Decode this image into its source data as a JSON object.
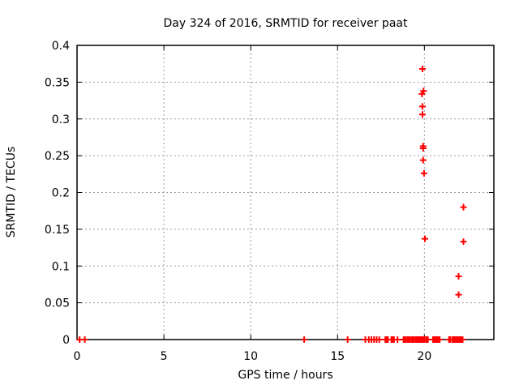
{
  "chart_data": {
    "type": "scatter",
    "title": "Day 324 of 2016, SRMTID for receiver paat",
    "xlabel": "GPS time / hours",
    "ylabel": "SRMTID / TECUs",
    "xlim": [
      0,
      24
    ],
    "ylim": [
      0,
      0.4
    ],
    "xticks": [
      "0",
      "5",
      "10",
      "15",
      "20"
    ],
    "yticks": [
      "0",
      "0.05",
      "0.1",
      "0.15",
      "0.2",
      "0.25",
      "0.3",
      "0.35",
      "0.4"
    ],
    "grid": true,
    "legend_position": "none",
    "marker": "plus",
    "colors": {
      "points": "#ff0000",
      "grid": "#9b9b9b",
      "border": "#000000",
      "background": "#ffffff",
      "text": "#000000"
    },
    "series": [
      {
        "name": "SRMTID",
        "points": [
          [
            19.89,
            0.368
          ],
          [
            19.95,
            0.338
          ],
          [
            19.86,
            0.334
          ],
          [
            19.89,
            0.317
          ],
          [
            19.89,
            0.306
          ],
          [
            19.93,
            0.263
          ],
          [
            19.93,
            0.26
          ],
          [
            19.93,
            0.244
          ],
          [
            19.98,
            0.226
          ],
          [
            20.03,
            0.137
          ],
          [
            22.25,
            0.18
          ],
          [
            22.25,
            0.133
          ],
          [
            21.97,
            0.086
          ],
          [
            21.97,
            0.061
          ],
          [
            0.15,
            0
          ],
          [
            0.45,
            0
          ],
          [
            13.08,
            0
          ],
          [
            15.58,
            0
          ],
          [
            16.6,
            0
          ],
          [
            16.8,
            0
          ],
          [
            16.95,
            0
          ],
          [
            17.1,
            0
          ],
          [
            17.25,
            0
          ],
          [
            17.4,
            0
          ],
          [
            17.75,
            0
          ],
          [
            17.8,
            0
          ],
          [
            17.85,
            0
          ],
          [
            17.9,
            0
          ],
          [
            18.1,
            0
          ],
          [
            18.15,
            0
          ],
          [
            18.2,
            0
          ],
          [
            18.25,
            0
          ],
          [
            18.45,
            0
          ],
          [
            18.8,
            0
          ],
          [
            18.85,
            0
          ],
          [
            18.9,
            0
          ],
          [
            18.95,
            0
          ],
          [
            19.05,
            0
          ],
          [
            19.1,
            0
          ],
          [
            19.15,
            0
          ],
          [
            19.25,
            0
          ],
          [
            19.3,
            0
          ],
          [
            19.35,
            0
          ],
          [
            19.4,
            0
          ],
          [
            19.5,
            0
          ],
          [
            19.55,
            0
          ],
          [
            19.6,
            0
          ],
          [
            19.65,
            0
          ],
          [
            19.7,
            0
          ],
          [
            19.75,
            0
          ],
          [
            19.8,
            0
          ],
          [
            19.85,
            0
          ],
          [
            19.9,
            0
          ],
          [
            19.95,
            0
          ],
          [
            20.0,
            0
          ],
          [
            20.1,
            0
          ],
          [
            20.15,
            0
          ],
          [
            20.2,
            0
          ],
          [
            20.5,
            0
          ],
          [
            20.55,
            0
          ],
          [
            20.6,
            0
          ],
          [
            20.65,
            0
          ],
          [
            20.7,
            0
          ],
          [
            20.78,
            0
          ],
          [
            20.83,
            0
          ],
          [
            20.88,
            0
          ],
          [
            21.42,
            0
          ],
          [
            21.48,
            0
          ],
          [
            21.6,
            0
          ],
          [
            21.65,
            0
          ],
          [
            21.7,
            0
          ],
          [
            21.75,
            0
          ],
          [
            21.8,
            0
          ],
          [
            21.85,
            0
          ],
          [
            21.9,
            0
          ],
          [
            21.95,
            0
          ],
          [
            22.0,
            0
          ],
          [
            22.05,
            0
          ],
          [
            22.1,
            0
          ],
          [
            22.15,
            0
          ],
          [
            22.2,
            0
          ]
        ]
      }
    ]
  }
}
